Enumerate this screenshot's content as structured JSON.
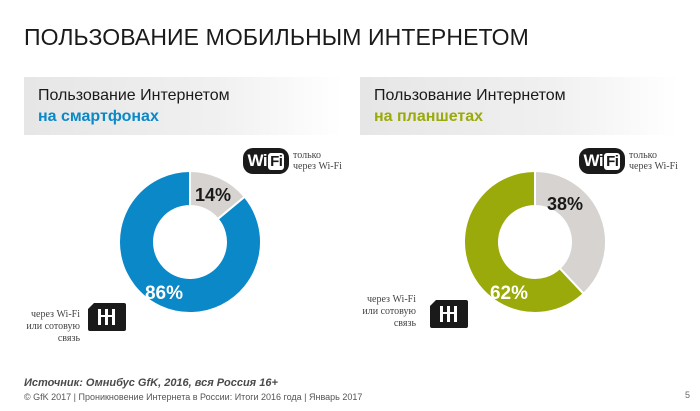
{
  "title": "ПОЛЬЗОВАНИЕ МОБИЛЬНЫМ ИНТЕРНЕТОМ",
  "colors": {
    "smartphones": "#0a88c8",
    "tablets": "#9aaa0a",
    "wifi_slice": "#d7d3d0"
  },
  "icons": {
    "wifi": "wifi-icon",
    "sim": "sim-card-icon"
  },
  "chart_data": [
    {
      "type": "pie",
      "title": "Пользование Интернетом на смартфонах",
      "title_line1": "Пользование Интернетом",
      "title_line2": "на смартфонах",
      "slices": [
        {
          "label": "только через Wi-Fi",
          "value": 14,
          "display": "14%"
        },
        {
          "label": "через Wi-Fi или сотовую связь",
          "value": 86,
          "display": "86%"
        }
      ]
    },
    {
      "type": "pie",
      "title": "Пользование Интернетом на планшетах",
      "title_line1": "Пользование Интернетом",
      "title_line2": "на планшетах",
      "slices": [
        {
          "label": "только через Wi-Fi",
          "value": 38,
          "display": "38%"
        },
        {
          "label": "через Wi-Fi или сотовую связь",
          "value": 62,
          "display": "62%"
        }
      ]
    }
  ],
  "legend": {
    "wifi_badge_text": "Wi",
    "wifi_badge_fi": "Fi",
    "wifi_only_line1": "только",
    "wifi_only_line2": "через Wi-Fi",
    "cellular_line1": "через Wi-Fi",
    "cellular_line2": "или сотовую",
    "cellular_line3": "связь"
  },
  "source": "Источник: Омнибус GfK, 2016, вся Россия 16+",
  "footer": "© GfK 2017 | Проникновение Интернета в России: Итоги 2016 года | Январь 2017",
  "page_number": "5"
}
